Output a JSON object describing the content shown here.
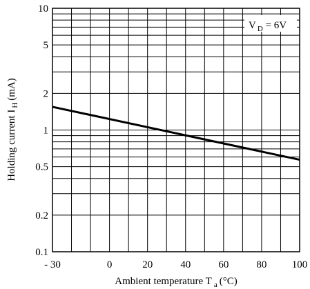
{
  "chart_data": {
    "type": "line",
    "title": "",
    "xlabel": "Ambient temperature T",
    "xlabel_sub": "a",
    "xlabel_unit": "(°C)",
    "ylabel": "Holding current I",
    "ylabel_sub": "H",
    "ylabel_unit": "(mA)",
    "xlim": [
      -30,
      100
    ],
    "ylim": [
      0.1,
      10
    ],
    "yscale": "log",
    "x_ticks": [
      -30,
      0,
      20,
      40,
      60,
      80,
      100
    ],
    "x_tick_labels": [
      "- 30",
      "0",
      "20",
      "40",
      "60",
      "80",
      "100"
    ],
    "x_grid": [
      -30,
      -20,
      -10,
      0,
      10,
      20,
      30,
      40,
      50,
      60,
      70,
      80,
      90,
      100
    ],
    "y_ticks": [
      0.1,
      0.2,
      0.5,
      1,
      2,
      5,
      10
    ],
    "y_tick_labels": [
      "0.1",
      "0.2",
      "0.5",
      "1",
      "2",
      "5",
      "10"
    ],
    "y_grid": [
      0.1,
      0.2,
      0.3,
      0.4,
      0.5,
      0.6,
      0.7,
      0.8,
      0.9,
      1,
      2,
      3,
      4,
      5,
      6,
      7,
      8,
      9,
      10
    ],
    "grid": true,
    "annotation": {
      "text": "V",
      "sub": "D",
      "rest": " = 6V"
    },
    "series": [
      {
        "x": [
          -30,
          100
        ],
        "y": [
          1.55,
          0.57
        ],
        "color": "#000000"
      }
    ]
  }
}
